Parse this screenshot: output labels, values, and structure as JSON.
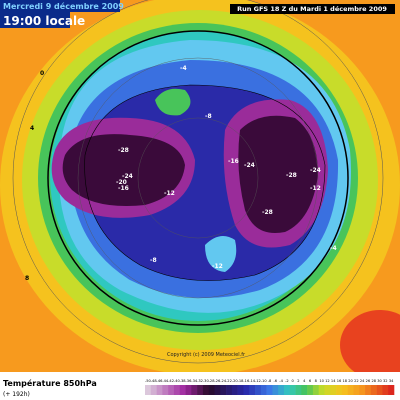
{
  "header": {
    "date": "Mercredi 9 décembre 2009",
    "time": "19:00 locale",
    "run": "Run GFS 18 Z du Mardi 1 décembre 2009"
  },
  "legend": {
    "title": "Température 850hPa",
    "subtitle": "(+ 192h)",
    "ticks": [
      -50,
      -48,
      -46,
      -44,
      -42,
      -40,
      -38,
      -36,
      -34,
      -32,
      -30,
      -28,
      -26,
      -24,
      -22,
      -20,
      -18,
      -16,
      -14,
      -12,
      -10,
      -8,
      -6,
      -4,
      -2,
      0,
      2,
      4,
      6,
      8,
      10,
      12,
      14,
      16,
      18,
      20,
      22,
      24,
      26,
      28,
      30,
      32,
      34
    ]
  },
  "copyright": "Copyright (c) 2009 Meteociel.fr",
  "map": {
    "contour_labels": [
      "-28",
      "-24",
      "-20",
      "-16",
      "-24",
      "-28",
      "-24",
      "-12",
      "-28",
      "-16",
      "-12",
      "-8",
      "-4",
      "-8",
      "0",
      "4",
      "8",
      "-12",
      "-4"
    ]
  }
}
